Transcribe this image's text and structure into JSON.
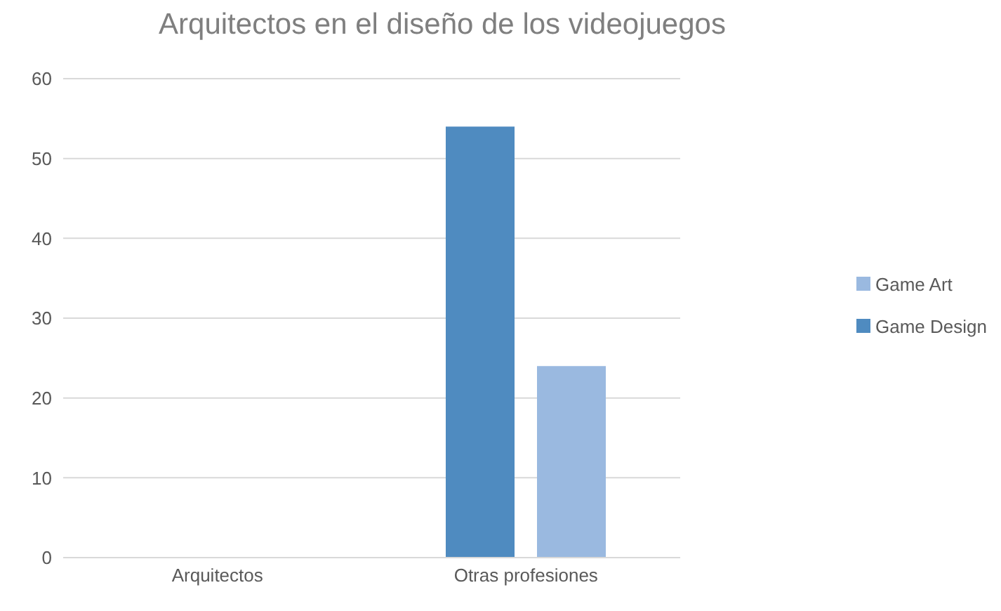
{
  "chart_data": {
    "type": "bar",
    "title": "Arquitectos en el diseño de los videojuegos",
    "categories": [
      "Arquitectos",
      "Otras profesiones"
    ],
    "series": [
      {
        "name": "Game Design",
        "color": "#4f8bc0",
        "values": [
          0,
          54
        ]
      },
      {
        "name": "Game Art",
        "color": "#9ab9e0",
        "values": [
          0,
          24
        ]
      }
    ],
    "ylim": [
      0,
      60
    ],
    "yticks": [
      0,
      10,
      20,
      30,
      40,
      50,
      60
    ],
    "grid": "y",
    "legend": "right"
  }
}
